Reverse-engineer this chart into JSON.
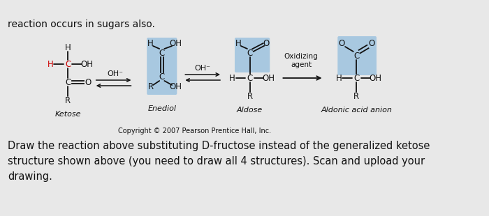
{
  "bg_color": "#e8e8e8",
  "title_line": "reaction occurs in sugars also.",
  "bottom_text_line1": "Draw the reaction above substituting D-fructose instead of the generalized ketose",
  "bottom_text_line2": "structure shown above (you need to draw all 4 structures). Sᴄan and upload your",
  "bottom_text_line3": "drawing.",
  "copyright": "Copyright © 2007 Pearson Prentice Hall, Inc.",
  "label_ketose": "Ketose",
  "label_enediol": "Enediol",
  "label_aldose": "Aldose",
  "label_aldonic": "Aldonic acid anion",
  "label_oxidizing": "Oxidizing\nagent",
  "highlight_color": "#a8c8e0",
  "text_color": "#111111",
  "red_color": "#cc0000",
  "font_size_struct": 8.5,
  "font_size_label": 8,
  "font_size_title": 10,
  "font_size_bottom": 10.5,
  "font_size_copyright": 7
}
